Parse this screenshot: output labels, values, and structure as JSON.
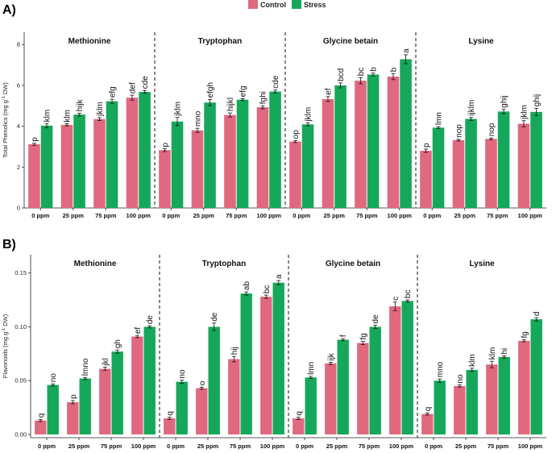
{
  "colors": {
    "control": "#E0697F",
    "stress": "#15A85A"
  },
  "legend": {
    "control_label": "Control",
    "stress_label": "Stress",
    "placement": "top-center"
  },
  "chart_data": [
    {
      "type": "bar",
      "panel_label": "A)",
      "ylabel_main": "Total Phenolics (mg g",
      "ylabel_sup": "-1",
      "ylabel_tail": " DW)",
      "ylim": [
        0,
        8.6
      ],
      "yticks": [
        0,
        2,
        4,
        6,
        8
      ],
      "facets": [
        {
          "title": "Methionine",
          "categories": [
            "0 ppm",
            "25 ppm",
            "75 ppm",
            "100 ppm"
          ],
          "series": [
            {
              "name": "Control",
              "values": [
                3.12,
                4.07,
                4.35,
                5.4
              ],
              "errors": [
                0.05,
                0.05,
                0.07,
                0.12
              ],
              "labels": [
                "p",
                "klm",
                "jklm",
                "def"
              ]
            },
            {
              "name": "Stress",
              "values": [
                4.03,
                4.57,
                5.22,
                5.68
              ],
              "errors": [
                0.1,
                0.07,
                0.1,
                0.07
              ],
              "labels": [
                "klm",
                "hijk",
                "efg",
                "cde"
              ]
            }
          ]
        },
        {
          "title": "Tryptophan",
          "categories": [
            "0 ppm",
            "25 ppm",
            "75 ppm",
            "100 ppm"
          ],
          "series": [
            {
              "name": "Control",
              "values": [
                2.83,
                3.8,
                4.55,
                4.93
              ],
              "errors": [
                0.07,
                0.1,
                0.1,
                0.07
              ],
              "labels": [
                "p",
                "mno",
                "hijkl",
                "fghi"
              ]
            },
            {
              "name": "Stress",
              "values": [
                4.23,
                5.16,
                5.3,
                5.7
              ],
              "errors": [
                0.2,
                0.15,
                0.05,
                0.07
              ],
              "labels": [
                "jklm",
                "efgh",
                "efg",
                "cde"
              ]
            }
          ]
        },
        {
          "title": "Glycine betain",
          "categories": [
            "0 ppm",
            "25 ppm",
            "75 ppm",
            "100 ppm"
          ],
          "series": [
            {
              "name": "Control",
              "values": [
                3.25,
                5.33,
                6.23,
                6.43
              ],
              "errors": [
                0.05,
                0.12,
                0.15,
                0.15
              ],
              "labels": [
                "op",
                "ef",
                "bc",
                "b"
              ]
            },
            {
              "name": "Stress",
              "values": [
                4.09,
                6.0,
                6.53,
                7.28
              ],
              "errors": [
                0.07,
                0.12,
                0.07,
                0.22
              ],
              "labels": [
                "jklm",
                "bcd",
                "b",
                "a"
              ]
            }
          ]
        },
        {
          "title": "Lysine",
          "categories": [
            "0 ppm",
            "25 ppm",
            "75 ppm",
            "100 ppm"
          ],
          "series": [
            {
              "name": "Control",
              "values": [
                2.8,
                3.32,
                3.38,
                4.12
              ],
              "errors": [
                0.08,
                0.04,
                0.04,
                0.15
              ],
              "labels": [
                "p",
                "nop",
                "nop",
                "jklm"
              ]
            },
            {
              "name": "Stress",
              "values": [
                3.93,
                4.36,
                4.72,
                4.7
              ],
              "errors": [
                0.05,
                0.07,
                0.1,
                0.18
              ],
              "labels": [
                "lmn",
                "ijklm",
                "ghij",
                "ghij"
              ]
            }
          ]
        }
      ]
    },
    {
      "type": "bar",
      "panel_label": "B)",
      "ylabel_main": "Flavonoids (mg g",
      "ylabel_sup": "-1",
      "ylabel_tail": " DW)",
      "ylim": [
        -0.003,
        0.167
      ],
      "yticks": [
        0.0,
        0.05,
        0.1,
        0.15
      ],
      "ytick_labels": [
        "0.00",
        "0.05",
        "0.10",
        "0.15"
      ],
      "facets": [
        {
          "title": "Methionine",
          "categories": [
            "0 ppm",
            "25 ppm",
            "75 ppm",
            "100 ppm"
          ],
          "series": [
            {
              "name": "Control",
              "values": [
                0.013,
                0.03,
                0.061,
                0.091
              ],
              "errors": [
                0.001,
                0.0015,
                0.0015,
                0.001
              ],
              "labels": [
                "q",
                "p",
                "jkl",
                "ef"
              ]
            },
            {
              "name": "Stress",
              "values": [
                0.046,
                0.052,
                0.077,
                0.1
              ],
              "errors": [
                0.001,
                0.001,
                0.0015,
                0.001
              ],
              "labels": [
                "no",
                "lmno",
                "gh",
                "de"
              ]
            }
          ]
        },
        {
          "title": "Tryptophan",
          "categories": [
            "0 ppm",
            "25 ppm",
            "75 ppm",
            "100 ppm"
          ],
          "series": [
            {
              "name": "Control",
              "values": [
                0.015,
                0.043,
                0.07,
                0.128
              ],
              "errors": [
                0.001,
                0.001,
                0.0025,
                0.0015
              ],
              "labels": [
                "q",
                "o",
                "hij",
                "bc"
              ]
            },
            {
              "name": "Stress",
              "values": [
                0.049,
                0.1,
                0.131,
                0.141
              ],
              "errors": [
                0.0015,
                0.0035,
                0.0015,
                0.002
              ],
              "labels": [
                "no",
                "de",
                "ab",
                "a"
              ]
            }
          ]
        },
        {
          "title": "Glycine betain",
          "categories": [
            "0 ppm",
            "25 ppm",
            "75 ppm",
            "100 ppm"
          ],
          "series": [
            {
              "name": "Control",
              "values": [
                0.015,
                0.066,
                0.085,
                0.119
              ],
              "errors": [
                0.001,
                0.001,
                0.0015,
                0.004
              ],
              "labels": [
                "q",
                "ijk",
                "fg",
                "c"
              ]
            },
            {
              "name": "Stress",
              "values": [
                0.053,
                0.088,
                0.1,
                0.124
              ],
              "errors": [
                0.001,
                0.001,
                0.0015,
                0.001
              ],
              "labels": [
                "lmn",
                "f",
                "de",
                "bc"
              ]
            }
          ]
        },
        {
          "title": "Lysine",
          "categories": [
            "0 ppm",
            "25 ppm",
            "75 ppm",
            "100 ppm"
          ],
          "series": [
            {
              "name": "Control",
              "values": [
                0.019,
                0.045,
                0.065,
                0.087
              ],
              "errors": [
                0.001,
                0.001,
                0.003,
                0.001
              ],
              "labels": [
                "q",
                "no",
                "klm",
                "fg"
              ]
            },
            {
              "name": "Stress",
              "values": [
                0.05,
                0.06,
                0.072,
                0.107
              ],
              "errors": [
                0.0015,
                0.0015,
                0.001,
                0.0015
              ],
              "labels": [
                "mno",
                "klm",
                "hi",
                "d"
              ]
            }
          ]
        }
      ]
    }
  ]
}
